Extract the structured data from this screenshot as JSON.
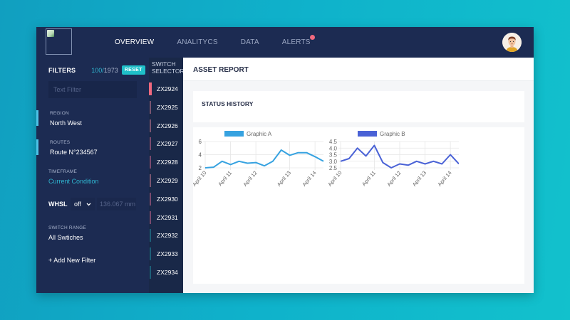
{
  "header": {
    "logo_alt": "logo",
    "nav": [
      {
        "label": "OVERVIEW",
        "active": true
      },
      {
        "label": "ANALITYCS",
        "active": false
      },
      {
        "label": "DATA",
        "active": false
      },
      {
        "label": "ALERTS",
        "active": false,
        "badge": true
      }
    ],
    "avatar": "user-avatar"
  },
  "filters": {
    "title": "FILTERS",
    "count_current": "100",
    "count_sep": "/",
    "count_total": "1973",
    "reset_label": "RESET",
    "text_filter_placeholder": "Text Filter",
    "region": {
      "label": "REGION",
      "value": "North West"
    },
    "routes": {
      "label": "ROUTES",
      "value": "Route N°234567"
    },
    "timeframe": {
      "label": "TIMEFRAME",
      "value": "Current Condition"
    },
    "whsl": {
      "label": "WHSL",
      "select_value": "off",
      "input_placeholder": "136.067 mm"
    },
    "switch_range": {
      "label": "SWITCH RANGE",
      "value": "All Swtiches"
    },
    "add_filter_label": "+ Add New Filter"
  },
  "switch_selector": {
    "title_line1": "SWITCH",
    "title_line2": "SELECTOR",
    "items": [
      {
        "id": "ZX2924",
        "color": "#f0697f",
        "selected": true
      },
      {
        "id": "ZX2925",
        "color": "#7a5570"
      },
      {
        "id": "ZX2926",
        "color": "#7a5570"
      },
      {
        "id": "ZX2927",
        "color": "#7a4a6e"
      },
      {
        "id": "ZX2928",
        "color": "#7a4a6e"
      },
      {
        "id": "ZX2929",
        "color": "#7a5570"
      },
      {
        "id": "ZX2930",
        "color": "#7a4a6e"
      },
      {
        "id": "ZX2931",
        "color": "#7a4a6e"
      },
      {
        "id": "ZX2932",
        "color": "#1d5f78"
      },
      {
        "id": "ZX2933",
        "color": "#1d5f78"
      },
      {
        "id": "ZX2934",
        "color": "#1d5f78"
      }
    ]
  },
  "main": {
    "title": "ASSET REPORT",
    "status_history_title": "STATUS HISTORY"
  },
  "colors": {
    "graphic_a": "#36a2e0",
    "graphic_b": "#4a62d6",
    "accent": "#1fc0c9",
    "alert": "#f0697f"
  },
  "chart_data": [
    {
      "type": "line",
      "title": "",
      "legend": [
        "Graphic A"
      ],
      "x_tick_labels": [
        "April 10",
        "April 11",
        "April 12",
        "April 13",
        "April 14"
      ],
      "x": [
        "April 10",
        "",
        "April 11",
        "",
        "",
        "April 12",
        "",
        "",
        "April 13",
        "",
        "April 14",
        "",
        "",
        "",
        ""
      ],
      "series": [
        {
          "name": "Graphic A",
          "color": "#36a2e0",
          "values": [
            2.0,
            2.1,
            3.0,
            2.5,
            3.0,
            2.7,
            2.8,
            2.3,
            3.0,
            4.7,
            3.9,
            4.3,
            4.3,
            3.7,
            3.0
          ]
        }
      ],
      "yticks": [
        2,
        4,
        6
      ],
      "ylim": [
        2,
        6
      ],
      "grid": true,
      "legend_position": "top"
    },
    {
      "type": "line",
      "title": "",
      "legend": [
        "Graphic B"
      ],
      "x_tick_labels": [
        "April 10",
        "April 11",
        "April 12",
        "April 13",
        "April 14"
      ],
      "series": [
        {
          "name": "Graphic B",
          "color": "#4a62d6",
          "values": [
            3.0,
            3.2,
            4.0,
            3.4,
            4.2,
            2.9,
            2.5,
            2.8,
            2.7,
            3.0,
            2.8,
            3.0,
            2.8,
            3.5,
            2.8
          ]
        }
      ],
      "yticks": [
        2.5,
        3.0,
        3.5,
        4.0,
        4.5
      ],
      "ylim": [
        2.5,
        4.5
      ],
      "grid": true,
      "legend_position": "top"
    }
  ]
}
